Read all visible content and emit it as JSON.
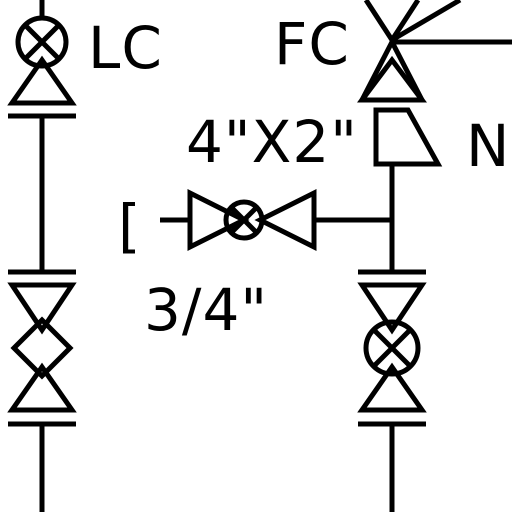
{
  "diagram": {
    "labels": {
      "lc": "LC",
      "fc": "FC",
      "reducer_size": "4\"X2\"",
      "n": "N",
      "valve_size": "3/4\"",
      "cap": "["
    },
    "colors": {
      "line": "#000000",
      "background": "#ffffff"
    }
  }
}
